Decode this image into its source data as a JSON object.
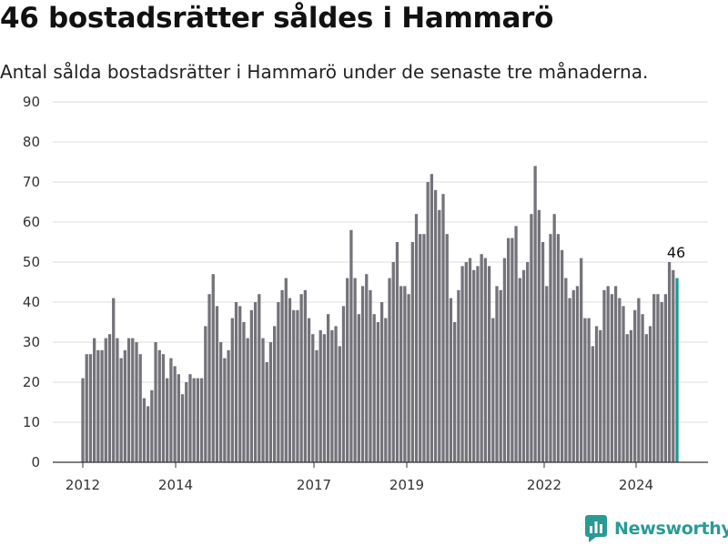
{
  "header": {
    "title": "46 bostadsrätter såldes i Hammarö",
    "subtitle": "Antal sålda bostadsrätter i Hammarö under de senaste tre månaderna."
  },
  "brand": {
    "name": "Newsworthy",
    "icon": "newsworthy-logo-icon"
  },
  "colors": {
    "bar": "#74737a",
    "highlight": "#1a9a94",
    "grid": "#dddddd",
    "brand": "#2a9a95"
  },
  "chart_data": {
    "type": "bar",
    "title": "46 bostadsrätter såldes i Hammarö",
    "subtitle": "Antal sålda bostadsrätter i Hammarö under de senaste tre månaderna.",
    "xlabel": "",
    "ylabel": "",
    "ylim": [
      0,
      90
    ],
    "yticks": [
      "0",
      "10",
      "20",
      "30",
      "40",
      "50",
      "60",
      "70",
      "80",
      "90"
    ],
    "xticks": [
      "2012",
      "2014",
      "2017",
      "2019",
      "2022",
      "2024"
    ],
    "grid": true,
    "legend": "none",
    "highlight_last": true,
    "last_value_label": "46",
    "values": [
      21,
      27,
      27,
      31,
      28,
      28,
      31,
      32,
      41,
      31,
      26,
      28,
      31,
      31,
      30,
      27,
      16,
      14,
      18,
      30,
      28,
      27,
      21,
      26,
      24,
      22,
      17,
      20,
      22,
      21,
      21,
      21,
      34,
      42,
      47,
      39,
      30,
      26,
      28,
      36,
      40,
      39,
      35,
      31,
      38,
      40,
      42,
      31,
      25,
      30,
      34,
      40,
      43,
      46,
      41,
      38,
      38,
      42,
      43,
      36,
      32,
      28,
      33,
      32,
      37,
      33,
      34,
      29,
      39,
      46,
      58,
      46,
      37,
      44,
      47,
      43,
      37,
      35,
      40,
      36,
      46,
      50,
      55,
      44,
      44,
      42,
      55,
      62,
      57,
      57,
      70,
      72,
      68,
      63,
      67,
      57,
      41,
      35,
      43,
      49,
      50,
      51,
      48,
      49,
      52,
      51,
      49,
      36,
      44,
      43,
      51,
      56,
      56,
      59,
      46,
      48,
      50,
      62,
      74,
      63,
      55,
      44,
      57,
      62,
      57,
      53,
      46,
      41,
      43,
      44,
      51,
      36,
      36,
      29,
      34,
      33,
      43,
      44,
      42,
      44,
      41,
      39,
      32,
      33,
      38,
      41,
      37,
      32,
      34,
      42,
      42,
      40,
      42,
      50,
      48,
      46
    ]
  }
}
